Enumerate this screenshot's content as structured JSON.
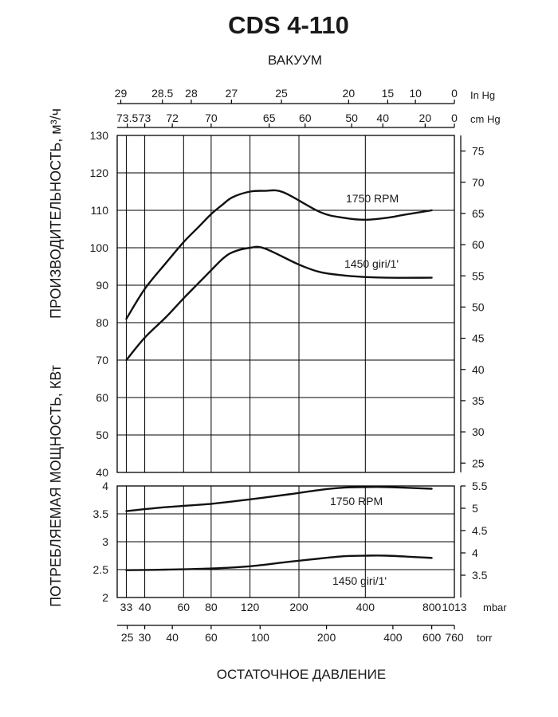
{
  "chart_data": {
    "type": "line",
    "title": "CDS 4-110",
    "x_scale": "log",
    "top_axis_title": "ВАКУУМ",
    "bottom_axis_title": "ОСТАТОЧНОЕ ДАВЛЕНИЕ",
    "axes": {
      "bottom_mbar": {
        "unit": "mbar",
        "ticks": [
          {
            "value": 33,
            "label": "33"
          },
          {
            "value": 40,
            "label": "40"
          },
          {
            "value": 60,
            "label": "60"
          },
          {
            "value": 80,
            "label": "80"
          },
          {
            "value": 120,
            "label": "120"
          },
          {
            "value": 200,
            "label": "200"
          },
          {
            "value": 400,
            "label": "400"
          },
          {
            "value": 800,
            "label": "800"
          },
          {
            "value": 1013,
            "label": "1013"
          }
        ]
      },
      "bottom_torr": {
        "unit": "torr",
        "ticks": [
          {
            "value": 25,
            "label": "25"
          },
          {
            "value": 30,
            "label": "30"
          },
          {
            "value": 40,
            "label": "40"
          },
          {
            "value": 60,
            "label": "60"
          },
          {
            "value": 100,
            "label": "100"
          },
          {
            "value": 200,
            "label": "200"
          },
          {
            "value": 400,
            "label": "400"
          },
          {
            "value": 600,
            "label": "600"
          },
          {
            "value": 760,
            "label": "760"
          }
        ]
      },
      "top_inhg": {
        "unit": "In Hg",
        "ticks": [
          {
            "value": 29,
            "label": "29"
          },
          {
            "value": 28.5,
            "label": "28.5"
          },
          {
            "value": 28,
            "label": "28"
          },
          {
            "value": 27,
            "label": "27"
          },
          {
            "value": 25,
            "label": "25"
          },
          {
            "value": 20,
            "label": "20"
          },
          {
            "value": 15,
            "label": "15"
          },
          {
            "value": 10,
            "label": "10"
          },
          {
            "value": 0,
            "label": "0"
          }
        ]
      },
      "top_cmhg": {
        "unit": "cm Hg",
        "ticks": [
          {
            "value": 73.5,
            "label": "73.5"
          },
          {
            "value": 73,
            "label": "73"
          },
          {
            "value": 72,
            "label": "72"
          },
          {
            "value": 70,
            "label": "70"
          },
          {
            "value": 65,
            "label": "65"
          },
          {
            "value": 60,
            "label": "60"
          },
          {
            "value": 50,
            "label": "50"
          },
          {
            "value": 40,
            "label": "40"
          },
          {
            "value": 20,
            "label": "20"
          },
          {
            "value": 0,
            "label": "0"
          }
        ]
      }
    },
    "upper_panel": {
      "ylabel": "ПРОИЗВОДИТЕЛЬНОСТЬ, м³/ч",
      "ylim": [
        40,
        130
      ],
      "yticks": [
        40,
        50,
        60,
        70,
        80,
        90,
        100,
        110,
        120,
        130
      ],
      "right_ylim": [
        23.5,
        77.5
      ],
      "right_yticks": [
        25,
        30,
        35,
        40,
        45,
        50,
        55,
        60,
        65,
        70,
        75
      ],
      "series": [
        {
          "name": "1750 RPM",
          "x_mbar": [
            33,
            40,
            50,
            60,
            70,
            80,
            90,
            100,
            120,
            140,
            170,
            250,
            320,
            400,
            500,
            600,
            800
          ],
          "y": [
            81,
            89,
            96,
            101.5,
            105.5,
            109,
            111.5,
            113.5,
            115,
            115.2,
            114.8,
            109.5,
            108,
            107.5,
            108,
            108.8,
            110
          ]
        },
        {
          "name": "1450 giri/1'",
          "x_mbar": [
            33,
            40,
            50,
            60,
            70,
            80,
            90,
            100,
            120,
            140,
            200,
            250,
            320,
            400,
            500,
            800
          ],
          "y": [
            70,
            76,
            81.5,
            86.5,
            90.5,
            94,
            97,
            98.8,
            100,
            99.8,
            95.5,
            93.5,
            92.6,
            92.2,
            92,
            92
          ]
        }
      ]
    },
    "lower_panel": {
      "ylabel": "ПОТРЕБЛЯЕМАЯ МОЩНОСТЬ, КВт",
      "ylim": [
        2,
        4
      ],
      "yticks": [
        {
          "value": 2,
          "label": "2"
        },
        {
          "value": 2.5,
          "label": "2.5"
        },
        {
          "value": 3,
          "label": "3"
        },
        {
          "value": 3.5,
          "label": "3.5"
        },
        {
          "value": 4,
          "label": "4"
        }
      ],
      "right_ylim": [
        3,
        5.5
      ],
      "right_yticks": [
        {
          "value": 3.5,
          "label": "3.5"
        },
        {
          "value": 4,
          "label": "4"
        },
        {
          "value": 4.5,
          "label": "4.5"
        },
        {
          "value": 5,
          "label": "5"
        },
        {
          "value": 5.5,
          "label": "5.5"
        }
      ],
      "series": [
        {
          "name": "1750 RPM",
          "x_mbar": [
            33,
            50,
            80,
            120,
            180,
            250,
            320,
            400,
            500,
            800
          ],
          "y": [
            3.55,
            3.62,
            3.68,
            3.76,
            3.85,
            3.93,
            3.97,
            3.98,
            3.98,
            3.95
          ]
        },
        {
          "name": "1450 giri/1'",
          "x_mbar": [
            33,
            50,
            80,
            120,
            180,
            250,
            320,
            400,
            500,
            800
          ],
          "y": [
            2.49,
            2.5,
            2.52,
            2.56,
            2.64,
            2.7,
            2.74,
            2.75,
            2.75,
            2.71
          ]
        }
      ]
    }
  }
}
